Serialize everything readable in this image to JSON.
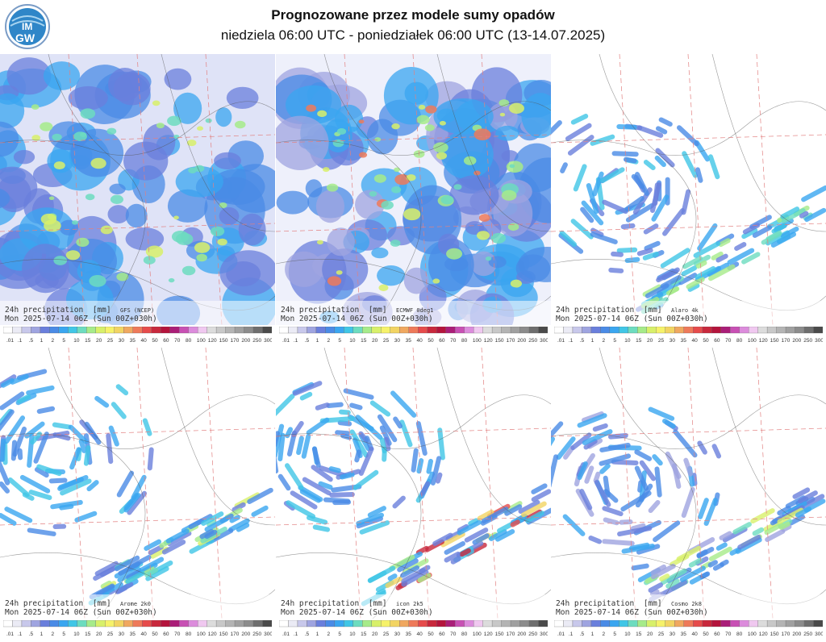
{
  "header": {
    "title": "Prognozowane przez modele sumy opadów",
    "subtitle": "niedziela 06:00 UTC - poniedziałek 06:00 UTC (13-14.07.2025)",
    "logo_text_top": "IM",
    "logo_text_bottom": "GW"
  },
  "colors": {
    "scale": [
      "#ffffff",
      "#ebebf5",
      "#c8c8eb",
      "#9fa4e0",
      "#6a7fdc",
      "#4a8be6",
      "#3aa6f0",
      "#40c6e6",
      "#6ddcbf",
      "#a6eb8a",
      "#d8f06a",
      "#f6f26a",
      "#f2d463",
      "#f0a860",
      "#ee7a5a",
      "#e64b4b",
      "#c8283c",
      "#b4143c",
      "#aa1e78",
      "#c850b4",
      "#dc8cdc",
      "#f0c8f0",
      "#dcdcdc",
      "#c8c8c8",
      "#b4b4b4",
      "#a0a0a0",
      "#8c8c8c",
      "#6e6e6e",
      "#4a4a4a"
    ]
  },
  "legend": {
    "labels": [
      ".01",
      ".1",
      ".5",
      "1",
      "2",
      "5",
      "10",
      "15",
      "20",
      "25",
      "30",
      "35",
      "40",
      "50",
      "60",
      "70",
      "80",
      "100",
      "120",
      "150",
      "170",
      "200",
      "250",
      "300"
    ]
  },
  "chart_data": [
    {
      "type": "heatmap",
      "variable": "24h precipitation",
      "units": "[mm]",
      "model": "GFS (NCEP)",
      "valid": "Mon 2025-07-14 06Z (Sun 00Z+030h)"
    },
    {
      "type": "heatmap",
      "variable": "24h precipitation",
      "units": "[mm]",
      "model": "ECMWF 0deg1",
      "valid": "Mon 2025-07-14 06Z (Sun 00Z+030h)"
    },
    {
      "type": "heatmap",
      "variable": "24h precipitation",
      "units": "[mm]",
      "model": "Alaro 4k",
      "valid": "Mon 2025-07-14 06Z (Sun 00Z+030h)"
    },
    {
      "type": "heatmap",
      "variable": "24h precipitation",
      "units": "[mm]",
      "model": "Arome 2k0",
      "valid": "Mon 2025-07-14 06Z (Sun 00Z+030h)"
    },
    {
      "type": "heatmap",
      "variable": "24h precipitation",
      "units": "[mm]",
      "model": "icon 2k5",
      "valid": "Mon 2025-07-14 06Z (Sun 00Z+030h)"
    },
    {
      "type": "heatmap",
      "variable": "24h precipitation",
      "units": "[mm]",
      "model": "Cosmo 2k8",
      "valid": "Mon 2025-07-14 06Z (Sun 00Z+030h)"
    }
  ]
}
